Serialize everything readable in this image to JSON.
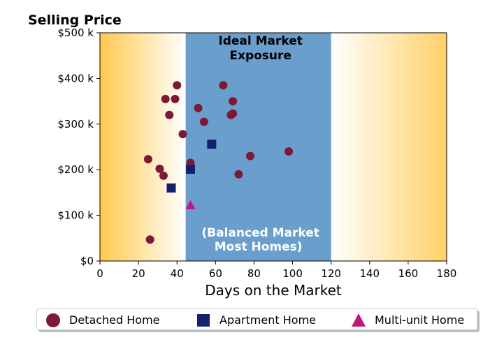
{
  "chart_data": {
    "type": "scatter",
    "title": "Selling Price",
    "xlabel": "Days on the Market",
    "ylabel": "",
    "xlim": [
      0,
      180
    ],
    "ylim": [
      0,
      500000
    ],
    "x_ticks": [
      "0",
      "20",
      "40",
      "60",
      "80",
      "100",
      "120",
      "140",
      "160",
      "180"
    ],
    "y_ticks": [
      "$0",
      "$100 k",
      "$200 k",
      "$300 k",
      "$400 k",
      "$500 k"
    ],
    "grid": false,
    "legend_position": "bottom",
    "regions": {
      "ideal_band": {
        "x_start": 44.5,
        "x_end": 120,
        "color": "#6a9fcd"
      },
      "ideal_label": [
        "Ideal Market",
        "Exposure"
      ],
      "balanced_label": [
        "(Balanced Market",
        "Most Homes)"
      ],
      "gradient_color": "#ffc94d"
    },
    "series": [
      {
        "name": "Detached Home",
        "marker": "circle",
        "color": "#7b1a36",
        "points": [
          {
            "x": 26,
            "y": 47000
          },
          {
            "x": 25,
            "y": 223000
          },
          {
            "x": 31,
            "y": 202000
          },
          {
            "x": 33,
            "y": 187000
          },
          {
            "x": 34,
            "y": 355000
          },
          {
            "x": 36,
            "y": 320000
          },
          {
            "x": 39,
            "y": 355000
          },
          {
            "x": 40,
            "y": 385000
          },
          {
            "x": 43,
            "y": 278000
          },
          {
            "x": 47,
            "y": 215000
          },
          {
            "x": 51,
            "y": 335000
          },
          {
            "x": 54,
            "y": 305000
          },
          {
            "x": 64,
            "y": 385000
          },
          {
            "x": 68,
            "y": 320000
          },
          {
            "x": 69,
            "y": 350000
          },
          {
            "x": 69,
            "y": 323000
          },
          {
            "x": 72,
            "y": 190000
          },
          {
            "x": 78,
            "y": 230000
          },
          {
            "x": 98,
            "y": 240000
          }
        ]
      },
      {
        "name": "Apartment Home",
        "marker": "square",
        "color": "#13226e",
        "points": [
          {
            "x": 37,
            "y": 160000
          },
          {
            "x": 47,
            "y": 201000
          },
          {
            "x": 58,
            "y": 256000
          }
        ]
      },
      {
        "name": "Multi-unit Home",
        "marker": "triangle",
        "color": "#c4147a",
        "points": [
          {
            "x": 47,
            "y": 122000
          }
        ]
      }
    ]
  }
}
